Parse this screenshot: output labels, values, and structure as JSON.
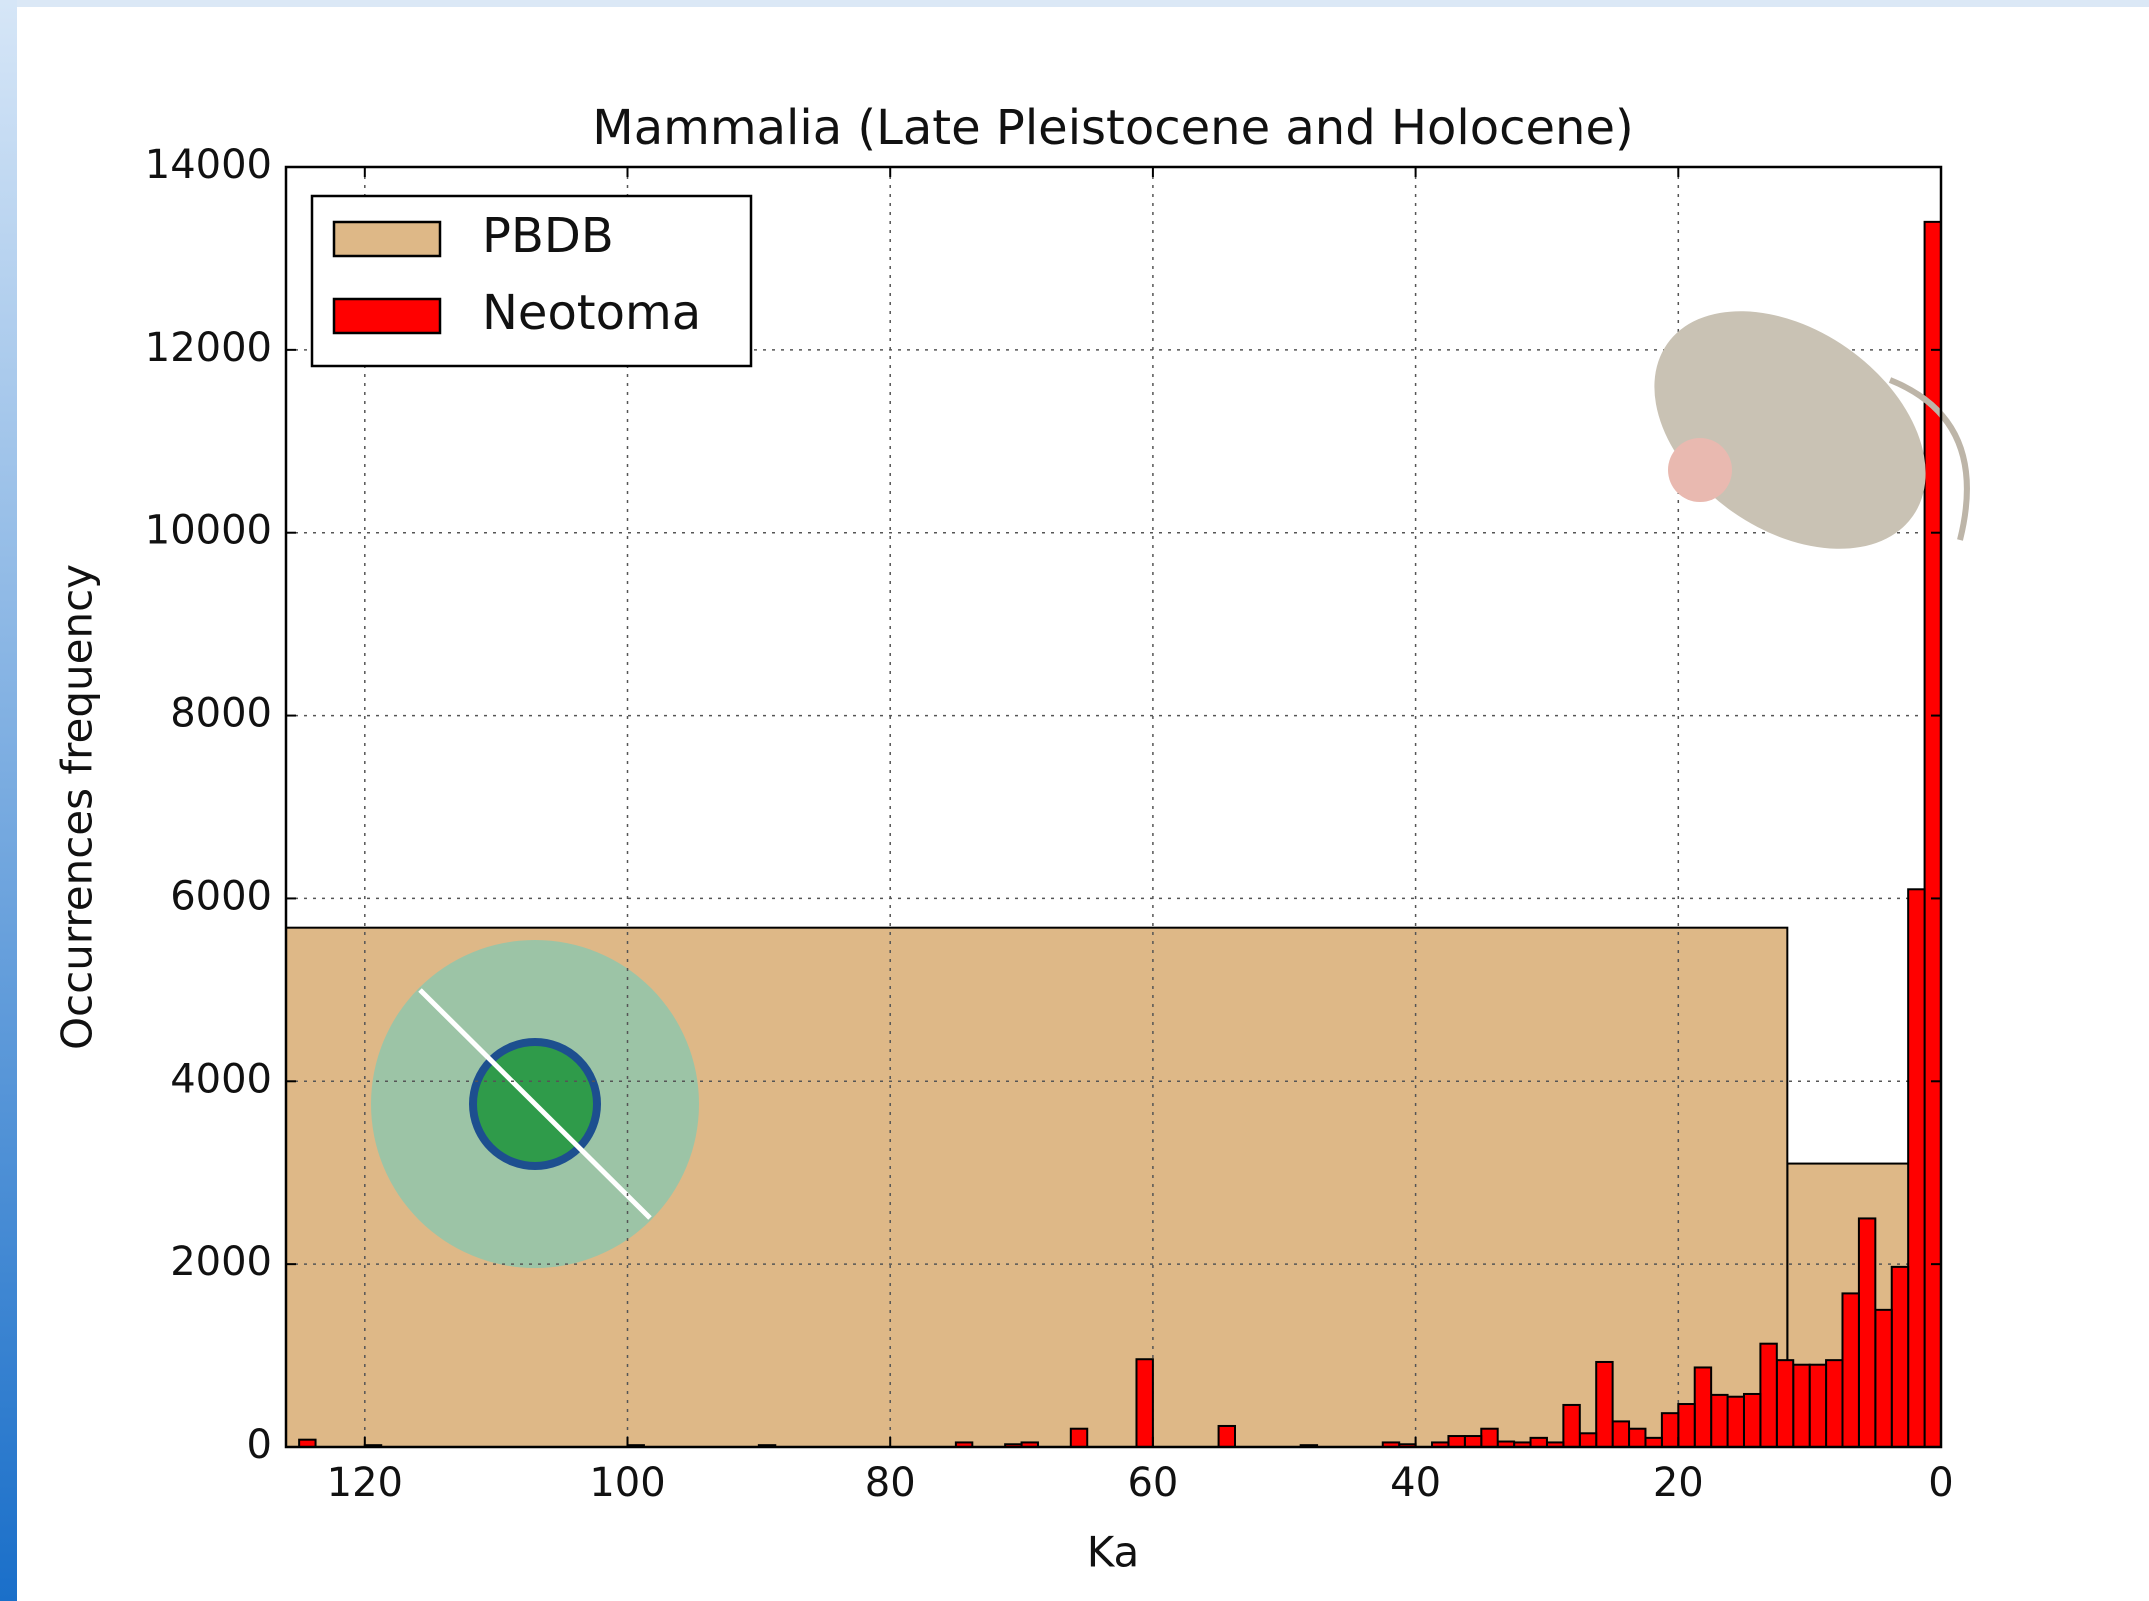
{
  "chart_data": {
    "type": "histogram",
    "title": "Mammalia (Late Pleistocene and Holocene)",
    "xlabel": "Ka",
    "ylabel": "Occurrences frequency",
    "xlim": [
      126,
      0
    ],
    "ylim": [
      0,
      14000
    ],
    "xticks": [
      120,
      100,
      80,
      60,
      40,
      20,
      0
    ],
    "yticks": [
      0,
      2000,
      4000,
      6000,
      8000,
      10000,
      12000,
      14000
    ],
    "grid": true,
    "legend": "upper left",
    "series": [
      {
        "name": "PBDB",
        "color": "#deb887",
        "bins": [
          0,
          11.7,
          126
        ],
        "values": [
          3100,
          5680
        ]
      },
      {
        "name": "Neotoma",
        "color": "#ff0000",
        "bins": [
          0,
          1.25,
          2.5,
          3.75,
          5,
          6.25,
          7.5,
          8.75,
          10,
          11.25,
          12.5,
          13.75,
          15,
          16.25,
          17.5,
          18.75,
          20,
          21.25,
          22.5,
          23.75,
          25,
          26.25,
          27.5,
          28.75,
          30,
          31.25,
          32.5,
          33.75,
          35,
          36.25,
          37.5,
          38.75,
          40,
          41.25,
          42.5,
          43.75,
          45,
          46.25,
          47.5,
          48.75,
          50,
          51.25,
          52.5,
          53.75,
          55,
          56.25,
          57.5,
          58.75,
          60,
          61.25,
          62.5,
          63.75,
          65,
          66.25,
          67.5,
          68.75,
          70,
          71.25,
          72.5,
          73.75,
          75,
          76.25,
          77.5,
          78.75,
          80,
          81.25,
          82.5,
          83.75,
          85,
          86.25,
          87.5,
          88.75,
          90,
          91.25,
          92.5,
          93.75,
          95,
          96.25,
          97.5,
          98.75,
          100,
          101.25,
          102.5,
          103.75,
          105,
          106.25,
          107.5,
          108.75,
          110,
          111.25,
          112.5,
          113.75,
          115,
          116.25,
          117.5,
          118.75,
          120,
          121.25,
          122.5,
          123.75,
          125
        ],
        "values": [
          13400,
          6100,
          1970,
          1500,
          2500,
          1680,
          950,
          900,
          900,
          950,
          1130,
          580,
          550,
          570,
          870,
          470,
          370,
          100,
          200,
          280,
          930,
          150,
          460,
          50,
          100,
          50,
          60,
          200,
          120,
          120,
          50,
          0,
          30,
          50,
          0,
          0,
          0,
          0,
          20,
          0,
          0,
          0,
          0,
          230,
          0,
          0,
          0,
          0,
          960,
          0,
          0,
          0,
          200,
          0,
          0,
          50,
          30,
          0,
          0,
          50,
          0,
          0,
          0,
          0,
          0,
          0,
          0,
          0,
          0,
          0,
          0,
          20,
          0,
          0,
          0,
          0,
          0,
          0,
          0,
          20,
          0,
          0,
          0,
          0,
          0,
          0,
          0,
          0,
          0,
          0,
          0,
          0,
          0,
          0,
          0,
          20,
          0,
          0,
          0,
          80
        ]
      }
    ]
  }
}
